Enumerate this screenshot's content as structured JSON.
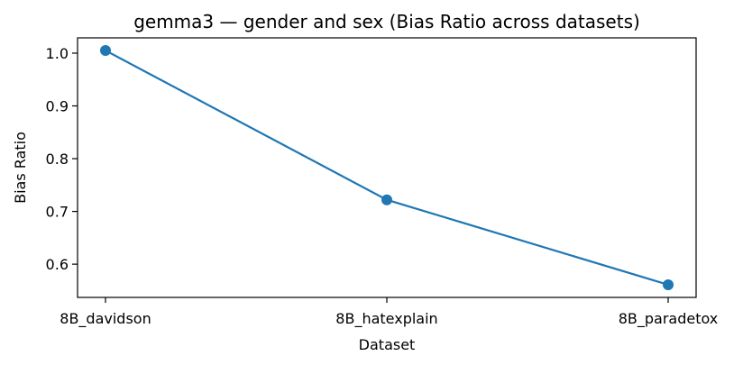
{
  "chart_data": {
    "type": "line",
    "title": "gemma3 — gender and sex (Bias Ratio across datasets)",
    "xlabel": "Dataset",
    "ylabel": "Bias Ratio",
    "categories": [
      "8B_davidson",
      "8B_hatexplain",
      "8B_paradetox"
    ],
    "series": [
      {
        "values": [
          1.005,
          0.722,
          0.561
        ],
        "color": "#1f77b4"
      }
    ],
    "ylim": [
      0.537,
      1.029
    ],
    "yticks": [
      "0.6",
      "0.7",
      "0.8",
      "0.9",
      "1.0"
    ],
    "grid": false
  }
}
